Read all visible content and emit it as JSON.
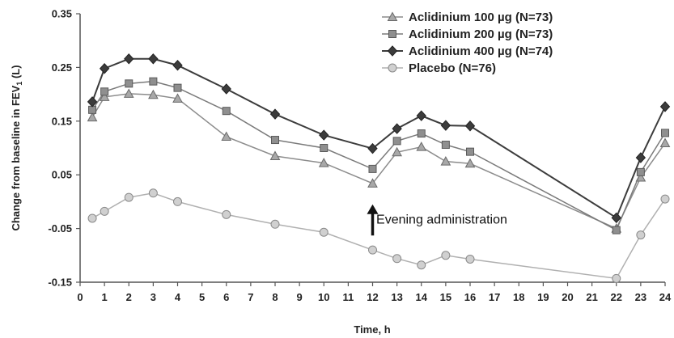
{
  "chart_data": {
    "type": "line",
    "xlabel": "Time, h",
    "ylabel_main": "Change from baseline in FEV",
    "ylabel_sub": "1",
    "ylabel_unit": " (L)",
    "xlim": [
      0,
      24
    ],
    "ylim": [
      -0.15,
      0.35
    ],
    "x_ticks": [
      0,
      1,
      2,
      3,
      4,
      5,
      6,
      7,
      8,
      9,
      10,
      11,
      12,
      13,
      14,
      15,
      16,
      17,
      18,
      19,
      20,
      21,
      22,
      23,
      24
    ],
    "x_tick_labels": [
      "0",
      "1",
      "2",
      "3",
      "4",
      "5",
      "6",
      "7",
      "8",
      "9",
      "10",
      "11",
      "12",
      "13",
      "14",
      "15",
      "16",
      "17",
      "18",
      "19",
      "20",
      "21",
      "22",
      "23",
      "24"
    ],
    "y_ticks": [
      -0.15,
      -0.05,
      0.05,
      0.15,
      0.25,
      0.35
    ],
    "y_tick_labels": [
      "-0.15",
      "-0.05",
      "0.05",
      "0.15",
      "0.25",
      "0.35"
    ],
    "grid": false,
    "legend_position": "top-right",
    "x": [
      0.5,
      1,
      2,
      3,
      4,
      6,
      8,
      10,
      12,
      13,
      14,
      15,
      16,
      22,
      23,
      24
    ],
    "series": [
      {
        "name": "Aclidinium 100 µg (N=73)",
        "marker": "triangle",
        "color": "#8c8c8c",
        "fill": "#a8a8a8",
        "values": [
          0.157,
          0.195,
          0.201,
          0.199,
          0.192,
          0.121,
          0.085,
          0.072,
          0.034,
          0.092,
          0.102,
          0.075,
          0.071,
          -0.05,
          0.045,
          0.109
        ]
      },
      {
        "name": "Aclidinium 200 µg (N=73)",
        "marker": "square",
        "color": "#7a7a7a",
        "fill": "#8f8f8f",
        "values": [
          0.171,
          0.205,
          0.22,
          0.224,
          0.212,
          0.169,
          0.115,
          0.1,
          0.061,
          0.113,
          0.127,
          0.106,
          0.093,
          -0.053,
          0.055,
          0.128
        ]
      },
      {
        "name": "Aclidinium 400 µg (N=74)",
        "marker": "diamond",
        "color": "#3c3c3c",
        "fill": "#3c3c3c",
        "values": [
          0.186,
          0.248,
          0.266,
          0.266,
          0.254,
          0.21,
          0.163,
          0.124,
          0.099,
          0.136,
          0.16,
          0.142,
          0.141,
          -0.03,
          0.082,
          0.177
        ]
      },
      {
        "name": "Placebo (N=76)",
        "marker": "circle",
        "color": "#b0b0b0",
        "fill": "#d0d0d0",
        "values": [
          -0.031,
          -0.018,
          0.008,
          0.016,
          0.0,
          -0.024,
          -0.042,
          -0.057,
          -0.09,
          -0.106,
          -0.118,
          -0.1,
          -0.107,
          -0.143,
          -0.062,
          0.005
        ]
      }
    ],
    "annotations": [
      {
        "text": "Evening administration",
        "arrow_x": 12,
        "arrow_from_y": -0.063,
        "arrow_to_y": -0.008,
        "text_x": 12.15,
        "text_y": -0.033
      }
    ]
  }
}
